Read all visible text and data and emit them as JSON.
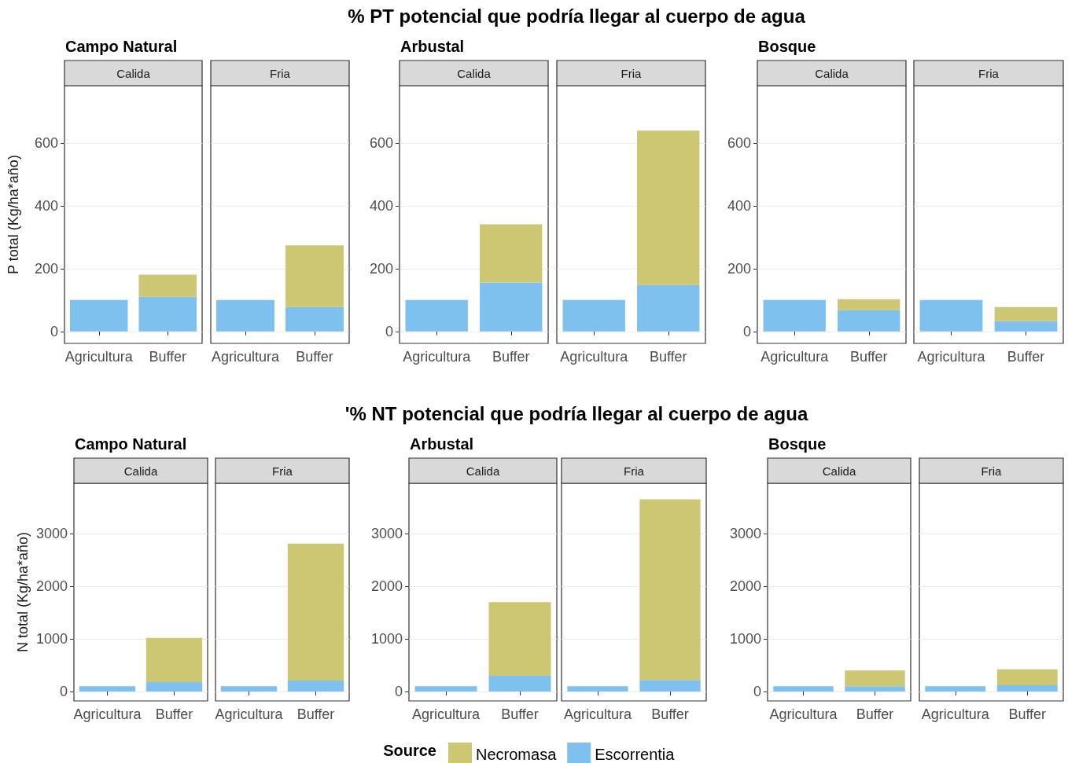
{
  "chart_data": [
    {
      "type": "bar",
      "stacked": true,
      "legend": "bottom",
      "legend_title": "Source",
      "annotations": [
        "% PT potencial que podría llegar al cuerpo de agua"
      ],
      "subtitle": "Campo Natural",
      "title": "Calida",
      "ylabel": "P total (Kg/ha*año)",
      "categories": [
        "Agricultura",
        "Buffer"
      ],
      "ylim": [
        -38,
        783
      ],
      "yticks": [
        0,
        200,
        400,
        600
      ],
      "grid": "y",
      "series": [
        {
          "name": "Escorrentia",
          "color": "#7ec0ee",
          "values": [
            100,
            110
          ]
        },
        {
          "name": "Necromasa",
          "color": "#cdc673",
          "values": [
            null,
            71
          ]
        }
      ]
    },
    {
      "type": "bar",
      "stacked": true,
      "title": "Fria",
      "tick_labels": "x",
      "categories": [
        "Agricultura",
        "Buffer"
      ],
      "ylim": [
        -38,
        783
      ],
      "yticks": [
        0,
        200,
        400,
        600
      ],
      "grid": "y",
      "series": [
        {
          "color": "#7ec0ee",
          "values": [
            100,
            78
          ]
        },
        {
          "color": "#cdc673",
          "values": [
            null,
            196
          ]
        }
      ]
    },
    {
      "type": "bar",
      "stacked": true,
      "subtitle": "Arbustal",
      "title": "Calida",
      "categories": [
        "Agricultura",
        "Buffer"
      ],
      "ylim": [
        -38,
        783
      ],
      "yticks": [
        0,
        200,
        400,
        600
      ],
      "grid": "y",
      "series": [
        {
          "color": "#7ec0ee",
          "values": [
            100,
            156
          ]
        },
        {
          "color": "#cdc673",
          "values": [
            null,
            185
          ]
        }
      ]
    },
    {
      "type": "bar",
      "stacked": true,
      "title": "Fria",
      "tick_labels": "x",
      "categories": [
        "Agricultura",
        "Buffer"
      ],
      "ylim": [
        -38,
        783
      ],
      "yticks": [
        0,
        200,
        400,
        600
      ],
      "grid": "y",
      "series": [
        {
          "color": "#7ec0ee",
          "values": [
            100,
            148
          ]
        },
        {
          "color": "#cdc673",
          "values": [
            null,
            492
          ]
        }
      ]
    },
    {
      "type": "bar",
      "stacked": true,
      "subtitle": "Bosque",
      "title": "Calida",
      "categories": [
        "Agricultura",
        "Buffer"
      ],
      "ylim": [
        -38,
        783
      ],
      "yticks": [
        0,
        200,
        400,
        600
      ],
      "grid": "y",
      "series": [
        {
          "color": "#7ec0ee",
          "values": [
            100,
            68
          ]
        },
        {
          "color": "#cdc673",
          "values": [
            null,
            35
          ]
        }
      ]
    },
    {
      "type": "bar",
      "stacked": true,
      "title": "Fria",
      "tick_labels": "x",
      "categories": [
        "Agricultura",
        "Buffer"
      ],
      "ylim": [
        -38,
        783
      ],
      "yticks": [
        0,
        200,
        400,
        600
      ],
      "grid": "y",
      "series": [
        {
          "color": "#7ec0ee",
          "values": [
            100,
            33
          ]
        },
        {
          "color": "#cdc673",
          "values": [
            null,
            45
          ]
        }
      ]
    },
    {
      "type": "bar",
      "stacked": true,
      "annotations": [
        "'% NT potencial que podría llegar al cuerpo de agua"
      ],
      "subtitle": "Campo Natural",
      "title": "Calida",
      "ylabel": "N total (Kg/ha*año)",
      "categories": [
        "Agricultura",
        "Buffer"
      ],
      "ylim": [
        -179,
        3956
      ],
      "yticks": [
        0,
        1000,
        2000,
        3000
      ],
      "grid": "y",
      "series": [
        {
          "color": "#7ec0ee",
          "values": [
            100,
            180
          ]
        },
        {
          "color": "#cdc673",
          "values": [
            null,
            840
          ]
        }
      ]
    },
    {
      "type": "bar",
      "stacked": true,
      "title": "Fria",
      "tick_labels": "x",
      "categories": [
        "Agricultura",
        "Buffer"
      ],
      "ylim": [
        -179,
        3956
      ],
      "yticks": [
        0,
        1000,
        2000,
        3000
      ],
      "grid": "y",
      "series": [
        {
          "color": "#7ec0ee",
          "values": [
            100,
            210
          ]
        },
        {
          "color": "#cdc673",
          "values": [
            null,
            2600
          ]
        }
      ]
    },
    {
      "type": "bar",
      "stacked": true,
      "subtitle": "Arbustal",
      "title": "Calida",
      "categories": [
        "Agricultura",
        "Buffer"
      ],
      "ylim": [
        -179,
        3956
      ],
      "yticks": [
        0,
        1000,
        2000,
        3000
      ],
      "grid": "y",
      "series": [
        {
          "color": "#7ec0ee",
          "values": [
            100,
            300
          ]
        },
        {
          "color": "#cdc673",
          "values": [
            null,
            1400
          ]
        }
      ]
    },
    {
      "type": "bar",
      "stacked": true,
      "title": "Fria",
      "tick_labels": "x",
      "categories": [
        "Agricultura",
        "Buffer"
      ],
      "ylim": [
        -179,
        3956
      ],
      "yticks": [
        0,
        1000,
        2000,
        3000
      ],
      "grid": "y",
      "series": [
        {
          "color": "#7ec0ee",
          "values": [
            100,
            220
          ]
        },
        {
          "color": "#cdc673",
          "values": [
            null,
            3430
          ]
        }
      ]
    },
    {
      "type": "bar",
      "stacked": true,
      "subtitle": "Bosque",
      "title": "Calida",
      "categories": [
        "Agricultura",
        "Buffer"
      ],
      "ylim": [
        -179,
        3956
      ],
      "yticks": [
        0,
        1000,
        2000,
        3000
      ],
      "grid": "y",
      "series": [
        {
          "color": "#7ec0ee",
          "values": [
            100,
            100
          ]
        },
        {
          "color": "#cdc673",
          "values": [
            null,
            300
          ]
        }
      ]
    },
    {
      "type": "bar",
      "stacked": true,
      "title": "Fria",
      "tick_labels": "x",
      "categories": [
        "Agricultura",
        "Buffer"
      ],
      "ylim": [
        -179,
        3956
      ],
      "yticks": [
        0,
        1000,
        2000,
        3000
      ],
      "grid": "y",
      "series": [
        {
          "color": "#7ec0ee",
          "values": [
            100,
            120
          ]
        },
        {
          "color": "#cdc673",
          "values": [
            null,
            300
          ]
        }
      ]
    }
  ]
}
